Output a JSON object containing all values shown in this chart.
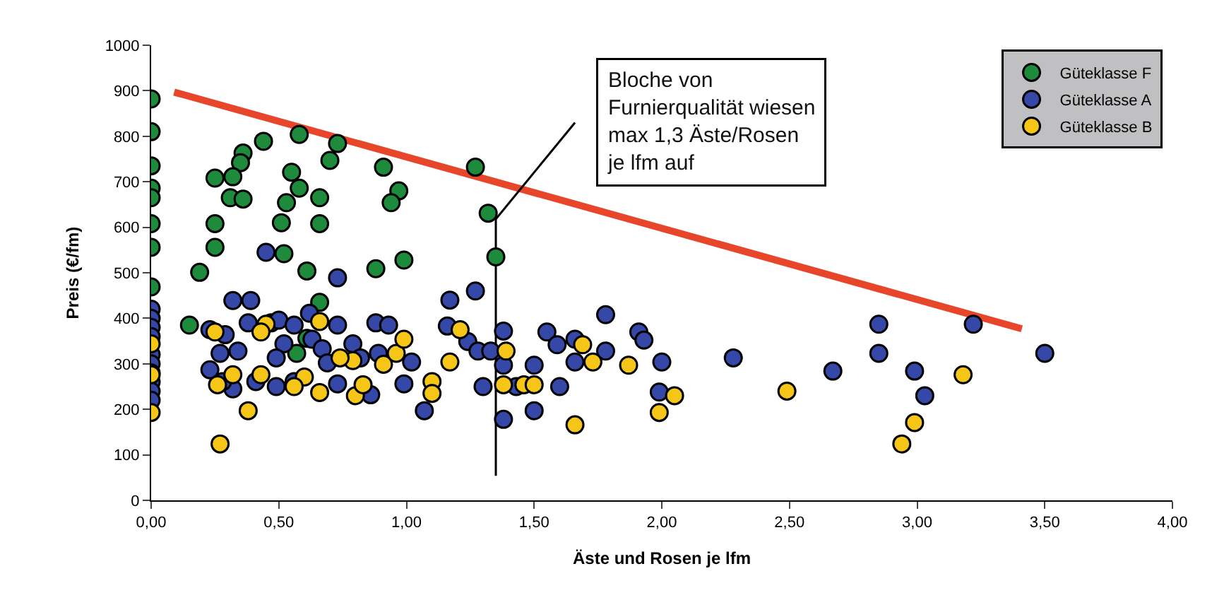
{
  "chart_data": {
    "type": "scatter",
    "xlabel": "Äste und Rosen je lfm",
    "ylabel": "Preis (€/fm)",
    "xlim": [
      0,
      4
    ],
    "ylim": [
      0,
      1000
    ],
    "xticks": [
      {
        "value": 0,
        "label": "0,00"
      },
      {
        "value": 0.5,
        "label": "0,50"
      },
      {
        "value": 1,
        "label": "1,00"
      },
      {
        "value": 1.5,
        "label": "1,50"
      },
      {
        "value": 2,
        "label": "2,00"
      },
      {
        "value": 2.5,
        "label": "2,50"
      },
      {
        "value": 3,
        "label": "3,00"
      },
      {
        "value": 3.5,
        "label": "3,50"
      },
      {
        "value": 4,
        "label": "4,00"
      }
    ],
    "yticks": [
      0,
      100,
      200,
      300,
      400,
      500,
      600,
      700,
      800,
      900,
      1000
    ],
    "legend": "top right",
    "marker": "circle",
    "series": [
      {
        "type": "line",
        "marker": "none",
        "color": "#e8462a",
        "x": [
          0.09,
          3.41
        ],
        "values": [
          897,
          377
        ]
      },
      {
        "type": "line",
        "marker": "none",
        "color": "#000000",
        "x": [
          1.35,
          1.35,
          1.66
        ],
        "values": [
          54,
          618,
          830
        ]
      },
      {
        "name": "Güteklasse F",
        "color": "#1e8a3c",
        "x": [
          0,
          0,
          0,
          0,
          0,
          0,
          0,
          0,
          0.44,
          0.58,
          0.73,
          0.36,
          0.35,
          0.7,
          0.91,
          0.25,
          0.32,
          0.55,
          0.58,
          0.66,
          0.97,
          0.94,
          0.31,
          0.36,
          0.53,
          0.25,
          0.51,
          0.66,
          0.25,
          0.52,
          0.19,
          0.61,
          0.88,
          0.99,
          0.66,
          0.15,
          0.61,
          0.57,
          1.27,
          1.32,
          1.35
        ],
        "values": [
          882,
          810,
          735,
          686,
          665,
          608,
          556,
          469,
          789,
          804,
          784,
          763,
          742,
          747,
          732,
          708,
          711,
          721,
          686,
          665,
          680,
          654,
          665,
          662,
          654,
          608,
          610,
          608,
          556,
          542,
          501,
          504,
          509,
          528,
          435,
          385,
          356,
          323,
          732,
          631,
          535
        ]
      },
      {
        "name": "Güteklasse A",
        "color": "#3548a8",
        "x": [
          0,
          0,
          0,
          0,
          0,
          0,
          0,
          0,
          0,
          0,
          0.45,
          0.73,
          0.32,
          0.39,
          0.23,
          0.29,
          0.27,
          0.34,
          0.23,
          0.32,
          0.28,
          0.38,
          0.41,
          0.47,
          0.5,
          0.52,
          0.49,
          0.56,
          0.62,
          0.63,
          0.67,
          0.73,
          0.69,
          0.73,
          0.79,
          0.82,
          0.86,
          0.88,
          0.93,
          0.89,
          0.99,
          0.49,
          0.56,
          1.27,
          1.17,
          1.16,
          1.24,
          1.28,
          1.33,
          1.38,
          1.38,
          1.02,
          1.07,
          1.3,
          1.43,
          1.38,
          1.5,
          1.5,
          1.55,
          1.59,
          1.6,
          1.66,
          1.66,
          1.78,
          1.78,
          1.91,
          1.93,
          2.0,
          1.99,
          2.28,
          2.67,
          2.85,
          2.85,
          2.99,
          3.03,
          3.22,
          3.5
        ],
        "values": [
          420,
          400,
          380,
          360,
          320,
          300,
          280,
          260,
          240,
          220,
          545,
          489,
          439,
          439,
          375,
          364,
          323,
          328,
          287,
          245,
          261,
          390,
          261,
          390,
          396,
          344,
          313,
          385,
          411,
          354,
          333,
          385,
          302,
          256,
          344,
          313,
          232,
          390,
          385,
          323,
          256,
          250,
          261,
          460,
          440,
          383,
          349,
          328,
          328,
          372,
          297,
          304,
          197,
          250,
          250,
          178,
          297,
          197,
          370,
          342,
          250,
          354,
          304,
          408,
          328,
          370,
          352,
          304,
          238,
          313,
          284,
          387,
          323,
          284,
          230,
          387,
          323
        ]
      },
      {
        "name": "Güteklasse B",
        "color": "#f5c518",
        "x": [
          0,
          0,
          0,
          0.25,
          0.45,
          0.43,
          0.66,
          0.32,
          0.26,
          0.43,
          0.6,
          0.56,
          0.66,
          0.8,
          0.83,
          0.79,
          0.91,
          0.96,
          0.99,
          0.38,
          0.27,
          0.74,
          1.21,
          1.17,
          1.1,
          1.1,
          1.39,
          1.38,
          1.46,
          1.5,
          1.69,
          1.73,
          1.87,
          1.66,
          1.99,
          2.05,
          2.49,
          3.18,
          2.99,
          2.94
        ],
        "values": [
          344,
          276,
          193,
          370,
          387,
          370,
          393,
          276,
          254,
          276,
          271,
          250,
          237,
          230,
          254,
          307,
          299,
          323,
          354,
          197,
          124,
          313,
          375,
          304,
          261,
          235,
          328,
          254,
          254,
          254,
          342,
          304,
          297,
          166,
          193,
          230,
          240,
          276,
          171,
          124
        ]
      }
    ],
    "annotations": [
      {
        "text": "Bloche von\nFurnierqualität wiesen\nmax 1,3 Äste/Rosen\nje lfm auf",
        "x": 1.66,
        "y": 830
      }
    ]
  }
}
